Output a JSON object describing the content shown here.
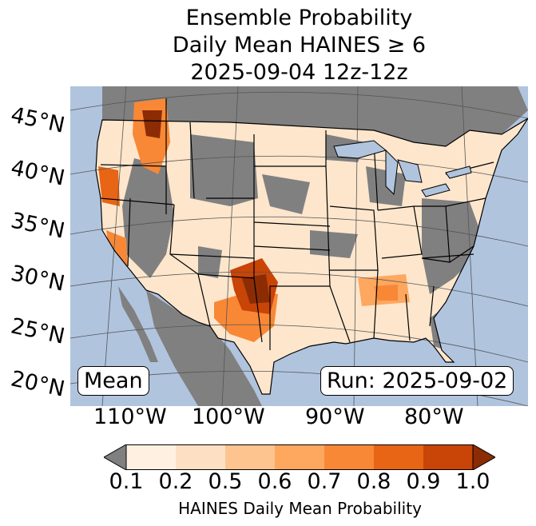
{
  "title": {
    "line1": "Ensemble Probability",
    "line2": "Daily Mean HAINES ≥ 6",
    "line3": "2025-09-04 12z-12z"
  },
  "map": {
    "region": "Continental United States",
    "colors": {
      "ocean": "#b0c4de",
      "masked_land": "#808080",
      "boundary": "#000000",
      "graticule": "#555555"
    },
    "latitude_labels": [
      "45°N",
      "40°N",
      "35°N",
      "30°N",
      "25°N",
      "20°N"
    ],
    "longitude_labels": [
      "110°W",
      "100°W",
      "90°W",
      "80°W"
    ],
    "stat_label": "Mean",
    "run_label": "Run: 2025-09-02"
  },
  "colorbar": {
    "ticks": [
      "0.1",
      "0.2",
      "0.5",
      "0.6",
      "0.7",
      "0.8",
      "0.9",
      "1.0"
    ],
    "colors": [
      "#fff0e1",
      "#fde0c4",
      "#fdc48f",
      "#fda75f",
      "#f88836",
      "#e76515",
      "#c84407"
    ],
    "under_color": "#808080",
    "over_color": "#8b2c04",
    "label": "HAINES Daily Mean Probability"
  }
}
